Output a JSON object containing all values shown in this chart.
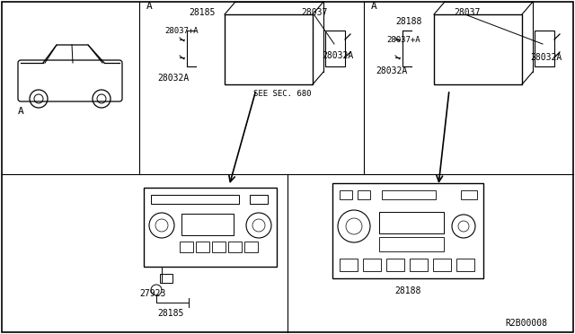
{
  "bg_color": "#ffffff",
  "line_color": "#000000",
  "diagram_ref": "R2B00008",
  "labels": {
    "car_label": "A",
    "left_diagram_A": "A",
    "right_diagram_A": "A",
    "part_28185": "28185",
    "part_28037_left": "28037",
    "part_28037plus_left": "28037+A",
    "part_28032A_left_top": "28032A",
    "part_28032A_left_bot": "28032A",
    "see_sec": "SEE SEC. 680",
    "part_28037_right": "28037",
    "part_28188_top": "28188",
    "part_28037plus_right": "28037+A",
    "part_28032A_right_top": "28032A",
    "part_28032A_right_bot": "28032A",
    "part_27923": "27923",
    "part_28185_bot": "28185",
    "part_28188_bot": "28188"
  }
}
